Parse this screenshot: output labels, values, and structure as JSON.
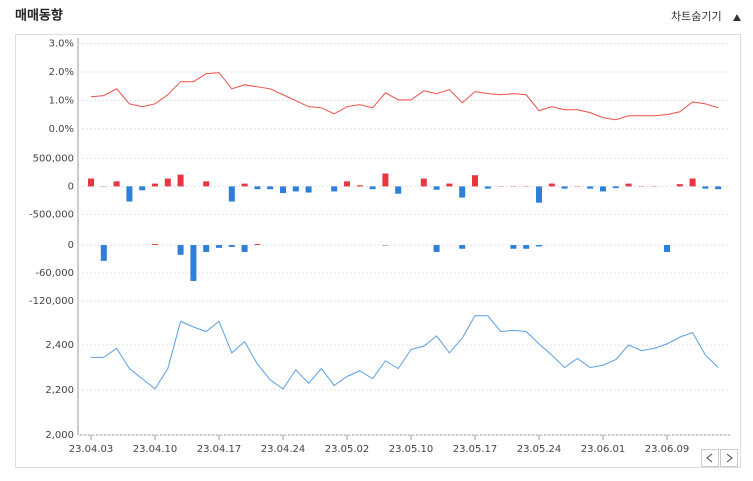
{
  "header": {
    "title": "매매동향",
    "toggle": "차트숨기기"
  },
  "chart_data": [
    {
      "type": "line",
      "color": "#ef4f4a",
      "grid": true,
      "ylim": [
        -0.5,
        3.2
      ],
      "yticks": [
        {
          "value": 0,
          "label": "0.0%"
        },
        {
          "value": 1,
          "label": "1.0%"
        },
        {
          "value": 2,
          "label": "2.0%"
        },
        {
          "value": 3,
          "label": "3.0%"
        }
      ],
      "values": [
        1.13,
        1.17,
        1.41,
        0.88,
        0.78,
        0.88,
        1.2,
        1.66,
        1.66,
        1.94,
        1.98,
        1.41,
        1.55,
        1.48,
        1.41,
        1.2,
        0.99,
        0.78,
        0.74,
        0.53,
        0.78,
        0.85,
        0.74,
        1.27,
        1.02,
        1.02,
        1.34,
        1.24,
        1.38,
        0.92,
        1.31,
        1.24,
        1.2,
        1.24,
        1.2,
        0.64,
        0.78,
        0.67,
        0.67,
        0.57,
        0.39,
        0.32,
        0.46,
        0.46,
        0.46,
        0.5,
        0.6,
        0.95,
        0.88,
        0.74
      ]
    },
    {
      "type": "bar",
      "positive_color": "#e8353f",
      "negative_color": "#2e7fd9",
      "grid": true,
      "ylim": [
        -650000,
        650000
      ],
      "yticks": [
        {
          "value": -500000,
          "label": "-500,000"
        },
        0,
        {
          "value": 500000,
          "label": "500,000"
        }
      ],
      "values": [
        140000,
        5000,
        90000,
        -270000,
        -70000,
        50000,
        140000,
        210000,
        0,
        90000,
        0,
        -270000,
        50000,
        -50000,
        -50000,
        -120000,
        -90000,
        -110000,
        0,
        -90000,
        90000,
        20000,
        -50000,
        230000,
        -130000,
        0,
        140000,
        -60000,
        50000,
        -200000,
        200000,
        -40000,
        5000,
        5000,
        5000,
        -290000,
        50000,
        -40000,
        5000,
        -40000,
        -90000,
        -30000,
        50000,
        5000,
        5000,
        0,
        40000,
        140000,
        -40000,
        -50000
      ]
    },
    {
      "type": "bar",
      "positive_color": "#e8353f",
      "negative_color": "#2e7fd9",
      "grid": true,
      "ylim": [
        -150000,
        20000
      ],
      "yticks": [
        {
          "value": -120000,
          "label": "-120,000"
        },
        {
          "value": -60000,
          "label": "-60,000"
        },
        0
      ],
      "values": [
        0,
        -34000,
        0,
        0,
        0,
        2000,
        0,
        -21000,
        -77000,
        -15000,
        -6000,
        -4000,
        -15000,
        2000,
        0,
        0,
        0,
        0,
        0,
        0,
        0,
        0,
        0,
        -1000,
        0,
        0,
        0,
        -15000,
        0,
        -8000,
        0,
        0,
        0,
        -8000,
        -8000,
        -3000,
        0,
        0,
        0,
        0,
        0,
        0,
        0,
        0,
        0,
        -15000,
        0,
        0,
        0,
        0
      ]
    },
    {
      "type": "line",
      "color": "#5b9fe0",
      "grid": true,
      "ylim": [
        2000,
        2580
      ],
      "yticks": [
        {
          "value": 2000,
          "label": "2,000"
        },
        {
          "value": 2200,
          "label": "2,200"
        },
        {
          "value": 2400,
          "label": "2,400"
        }
      ],
      "categories": [
        "23.04.03",
        null,
        null,
        null,
        null,
        "23.04.10",
        null,
        null,
        null,
        null,
        "23.04.17",
        null,
        null,
        null,
        null,
        "23.04.24",
        null,
        null,
        null,
        null,
        "23.05.02",
        null,
        null,
        null,
        null,
        "23.05.10",
        null,
        null,
        null,
        null,
        "23.05.17",
        null,
        null,
        null,
        null,
        "23.05.24",
        null,
        null,
        null,
        null,
        "23.06.01",
        null,
        null,
        null,
        null,
        "23.06.09",
        null,
        null,
        null,
        null
      ],
      "values": [
        2345,
        2345,
        2385,
        2295,
        2250,
        2205,
        2295,
        2505,
        2480,
        2460,
        2505,
        2365,
        2415,
        2315,
        2245,
        2205,
        2290,
        2230,
        2295,
        2220,
        2260,
        2285,
        2250,
        2330,
        2295,
        2380,
        2395,
        2440,
        2365,
        2430,
        2530,
        2530,
        2460,
        2465,
        2460,
        2405,
        2355,
        2300,
        2340,
        2300,
        2310,
        2335,
        2400,
        2375,
        2385,
        2405,
        2435,
        2455,
        2355,
        2300
      ]
    }
  ]
}
